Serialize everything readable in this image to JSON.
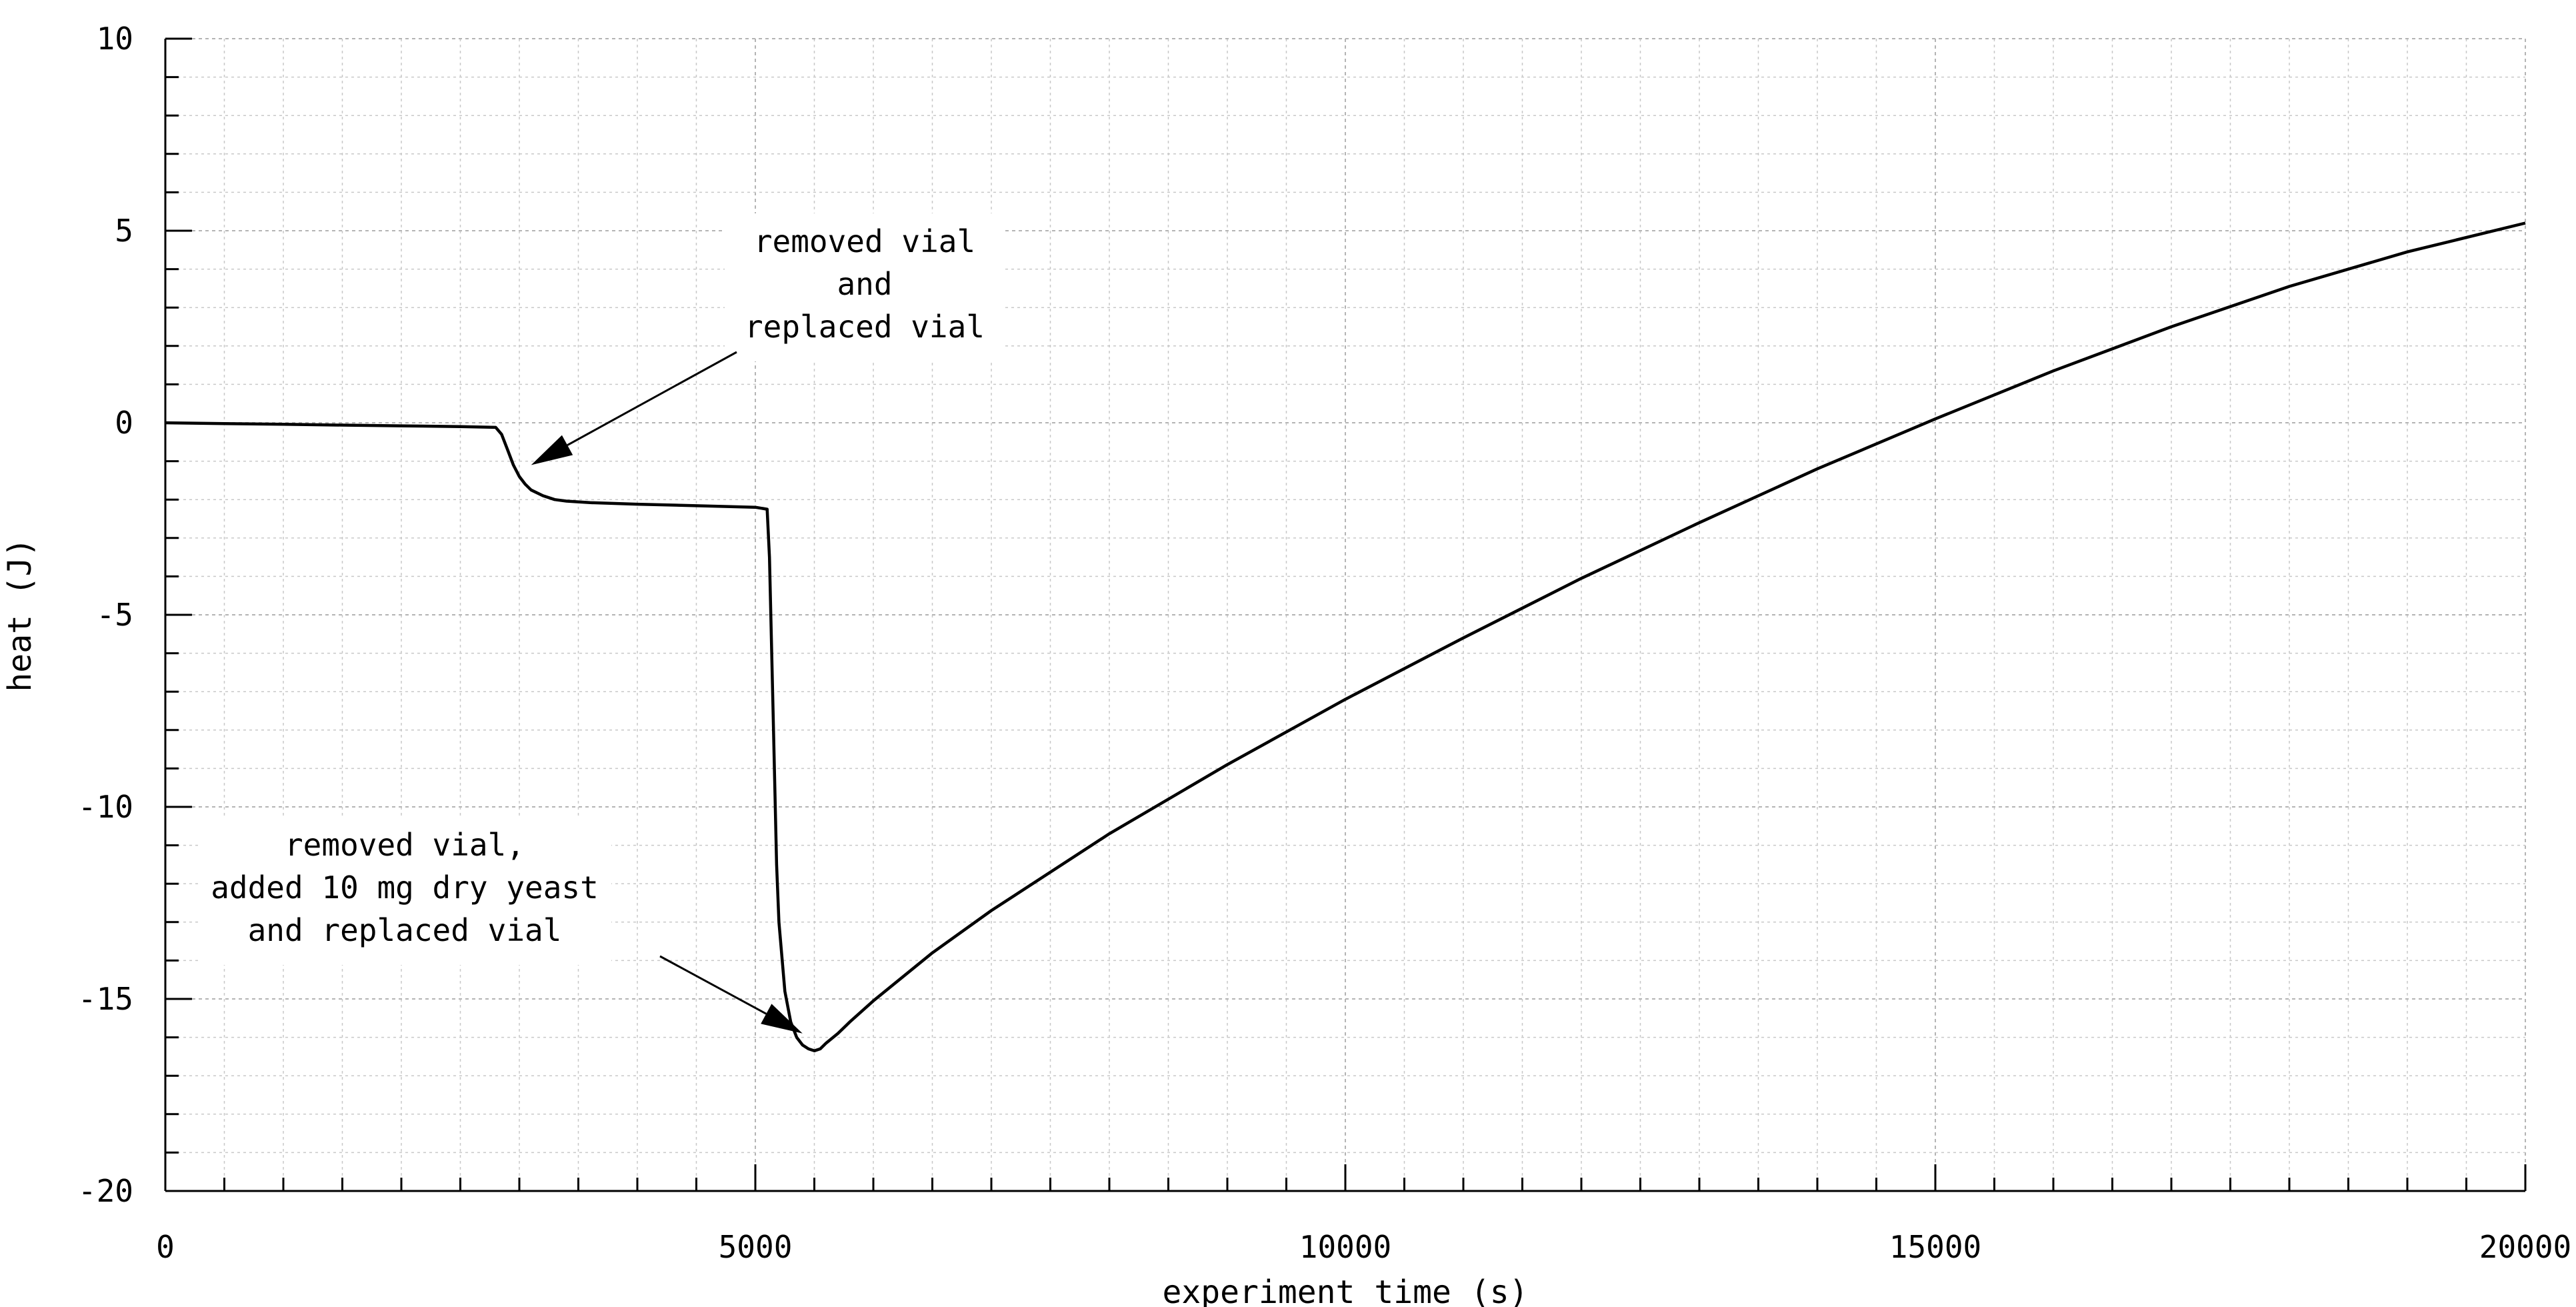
{
  "chart_data": {
    "type": "line",
    "title": "",
    "xlabel": "experiment time (s)",
    "ylabel": "heat (J)",
    "xlim": [
      0,
      20000
    ],
    "ylim": [
      -20,
      10
    ],
    "x_ticks": [
      0,
      5000,
      10000,
      15000,
      20000
    ],
    "y_ticks": [
      10,
      5,
      0,
      -5,
      -10,
      -15,
      -20
    ],
    "x_tick_labels": [
      "0",
      "5000",
      "10000",
      "15000",
      "20000"
    ],
    "y_tick_labels": [
      "10",
      "5",
      "0",
      "-5",
      "-10",
      "-15",
      "-20"
    ],
    "grid": true,
    "series": [
      {
        "x": [
          0,
          500,
          1000,
          1500,
          2000,
          2500,
          2800,
          2850,
          2900,
          2950,
          3000,
          3050,
          3100,
          3200,
          3300,
          3400,
          3600,
          4000,
          4500,
          5000,
          5100,
          5120,
          5150,
          5180,
          5200,
          5250,
          5300,
          5350,
          5400,
          5450,
          5500,
          5550,
          5600,
          5700,
          5800,
          6000,
          6500,
          7000,
          8000,
          9000,
          10000,
          11000,
          12000,
          13000,
          14000,
          15000,
          16000,
          17000,
          18000,
          19000,
          20000
        ],
        "y": [
          0,
          -0.02,
          -0.04,
          -0.06,
          -0.08,
          -0.1,
          -0.12,
          -0.3,
          -0.7,
          -1.1,
          -1.4,
          -1.6,
          -1.75,
          -1.9,
          -2.0,
          -2.04,
          -2.08,
          -2.12,
          -2.16,
          -2.2,
          -2.25,
          -3.5,
          -7.5,
          -11.5,
          -13.0,
          -14.8,
          -15.6,
          -16.0,
          -16.2,
          -16.3,
          -16.35,
          -16.3,
          -16.15,
          -15.9,
          -15.6,
          -15.05,
          -13.8,
          -12.7,
          -10.7,
          -8.9,
          -7.2,
          -5.6,
          -4.05,
          -2.6,
          -1.2,
          0.1,
          1.35,
          2.5,
          3.55,
          4.45,
          5.2
        ]
      }
    ],
    "annotations": [
      {
        "lines": [
          "removed vial",
          "and",
          "replaced vial"
        ],
        "point": [
          3100,
          -1.1
        ]
      },
      {
        "lines": [
          "removed vial,",
          "added 10 mg dry yeast",
          "and replaced vial"
        ],
        "point": [
          5400,
          -15.9
        ]
      }
    ]
  }
}
